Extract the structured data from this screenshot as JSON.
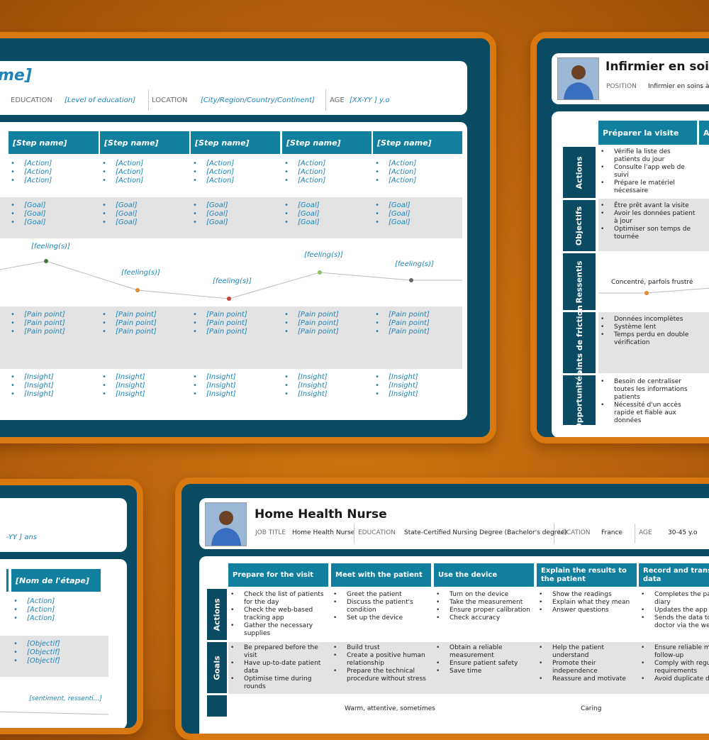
{
  "template": {
    "title_fragment": "me]",
    "education_label": "EDUCATION",
    "education_value": "[Level of education]",
    "location_label": "LOCATION",
    "location_value": "[City/Region/Country/Continent]",
    "age_label": "AGE",
    "age_value": "[XX-YY ] y.o",
    "step_label": "[Step name]",
    "action": "[Action]",
    "goal": "[Goal]",
    "feeling": "[feeling(s)]",
    "pain": "[Pain point]",
    "insight": "[Insight]"
  },
  "french": {
    "title": "Infirmier en soins",
    "position_label": "POSITION",
    "position_value": "Infirmier en soins à d",
    "step1": "Préparer la visite",
    "step2": "Arr",
    "rows": [
      "Actions",
      "Objectifs",
      "Ressentis",
      "Points de friction",
      "Opportunités"
    ],
    "actions": [
      "Vérifie la liste des patients du jour",
      "Consulte l'app web de suivi",
      "Prépare le matériel nécessaire"
    ],
    "goals": [
      "Être prêt avant la visite",
      "Avoir les données patient à jour",
      "Optimiser son temps de tournée"
    ],
    "feeling": "Concentré, parfois frustré",
    "feeling_next": "Ch",
    "pains": [
      "Données incomplètes",
      "Système lent",
      "Temps perdu en double vérification"
    ],
    "opps": [
      "Besoin de centraliser toutes les informations patients",
      "Nécessité d'un accès rapide et fiable aux données"
    ]
  },
  "fr_template": {
    "age_fragment": "-YY ] ans",
    "step_label": "[Nom de l'étape]",
    "action": "[Action]",
    "goal": "[Objectif]",
    "feeling": "[sentiment, ressenti...]"
  },
  "english": {
    "title": "Home Health Nurse",
    "job_label": "JOB TITLE",
    "job_value": "Home Health Nurse",
    "edu_label": "EDUCATION",
    "edu_value": "State-Certified Nursing Degree (Bachelor's degree)",
    "loc_label": "LOCATION",
    "loc_value": "France",
    "age_label": "AGE",
    "age_value": "30-45 y.o",
    "steps": [
      "Prepare for the visit",
      "Meet with the patient",
      "Use the device",
      "Explain the results to the patient",
      "Record and transmi data"
    ],
    "rows": [
      "Actions",
      "Goals"
    ],
    "actions": [
      [
        "Check the list of patients for the day",
        "Check the web-based tracking app",
        "Gather the necessary supplies"
      ],
      [
        "Greet the patient",
        "Discuss the patient's condition",
        "Set up the device"
      ],
      [
        "Turn on the device",
        "Take the measurement",
        "Ensure proper calibration",
        "Check accuracy"
      ],
      [
        "Show the readings",
        "Explain what they mean",
        "Answer questions"
      ],
      [
        "Completes the pa diary",
        "Updates the app",
        "Sends the data to doctor via the we"
      ]
    ],
    "goals": [
      [
        "Be prepared before the visit",
        "Have up-to-date patient data",
        "Optimise time during rounds"
      ],
      [
        "Build trust",
        "Create a positive human relationship",
        "Prepare the technical procedure without stress"
      ],
      [
        "Obtain a reliable measurement",
        "Ensure patient safety",
        "Save time"
      ],
      [
        "Help the patient understand",
        "Promote their independence",
        "Reassure and motivate"
      ],
      [
        "Ensure reliable m follow-up",
        "Comply with regu requirements",
        "Avoid duplicate d"
      ]
    ],
    "feelings": [
      "Warm, attentive, sometimes",
      "Caring"
    ]
  },
  "colors": {
    "frame": "#0b4a63",
    "border": "#d8780e",
    "header": "#11809e",
    "placeholder": "#1d84b5"
  }
}
